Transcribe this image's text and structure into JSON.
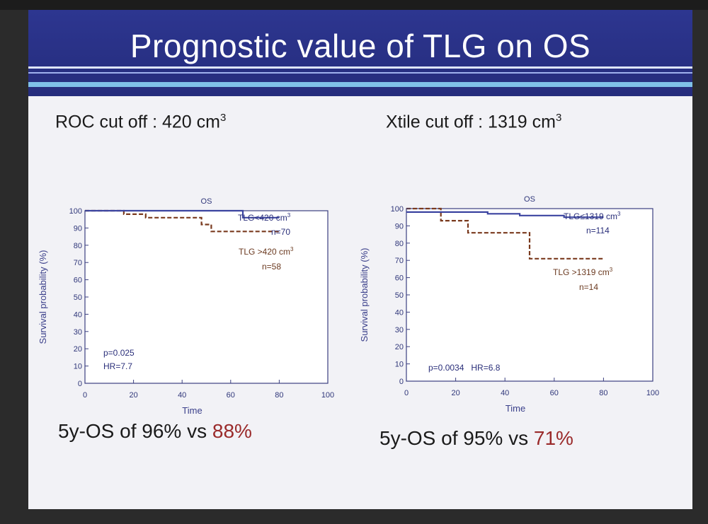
{
  "slide": {
    "title": "Prognostic value of TLG on OS",
    "colors": {
      "title_bg": "#2b3388",
      "accent_red": "#9a2a2a",
      "line_blue": "#3b44a0",
      "line_brown": "#7a3a1e"
    }
  },
  "panels": [
    {
      "cutoff_label": "ROC cut off : 420 cm",
      "cutoff_sup": "3",
      "summary_prefix": "5y-OS of 96%  vs ",
      "summary_highlight": "88%",
      "stats": {
        "p": "p=0.025",
        "hr": "HR=7.7"
      },
      "legend_high_name": "TLG<420 cm",
      "legend_high_sup": "3",
      "legend_high_n": "n=70",
      "legend_low_name": "TLG >420 cm",
      "legend_low_sup": "3",
      "legend_low_n": "n=58"
    },
    {
      "cutoff_label": "Xtile cut off : 1319 cm",
      "cutoff_sup": "3",
      "summary_prefix": "5y-OS of 95%  vs ",
      "summary_highlight": "71%",
      "stats": {
        "p": "p=0.0034",
        "hr": "HR=6.8"
      },
      "legend_high_name": "TLG≤1319 cm",
      "legend_high_sup": "3",
      "legend_high_n": "n=114",
      "legend_low_name": "TLG >1319 cm",
      "legend_low_sup": "3",
      "legend_low_n": "n=14"
    }
  ],
  "chart_data": [
    {
      "type": "line",
      "title": "OS",
      "xlabel": "Time",
      "ylabel": "Survival probability (%)",
      "xlim": [
        0,
        100
      ],
      "ylim": [
        0,
        100
      ],
      "xticks": [
        0,
        20,
        40,
        60,
        80,
        100
      ],
      "yticks": [
        0,
        10,
        20,
        30,
        40,
        50,
        60,
        70,
        80,
        90,
        100
      ],
      "series": [
        {
          "name": "TLG<420 cm3",
          "style": "solid",
          "color": "#3b44a0",
          "x": [
            0,
            65,
            65,
            80
          ],
          "y": [
            100,
            100,
            96,
            96
          ]
        },
        {
          "name": "TLG >420 cm3",
          "style": "dashed",
          "color": "#7a3a1e",
          "x": [
            0,
            16,
            16,
            25,
            25,
            48,
            48,
            52,
            52,
            80
          ],
          "y": [
            100,
            100,
            98,
            98,
            96,
            96,
            92,
            92,
            88,
            88
          ]
        }
      ]
    },
    {
      "type": "line",
      "title": "OS",
      "xlabel": "Time",
      "ylabel": "Survival probability (%)",
      "xlim": [
        0,
        100
      ],
      "ylim": [
        0,
        100
      ],
      "xticks": [
        0,
        20,
        40,
        60,
        80,
        100
      ],
      "yticks": [
        0,
        10,
        20,
        30,
        40,
        50,
        60,
        70,
        80,
        90,
        100
      ],
      "series": [
        {
          "name": "TLG≤1319 cm3",
          "style": "solid",
          "color": "#3b44a0",
          "x": [
            0,
            33,
            33,
            46,
            46,
            64,
            64,
            80
          ],
          "y": [
            98,
            98,
            97,
            97,
            96,
            96,
            95,
            95
          ]
        },
        {
          "name": "TLG >1319 cm3",
          "style": "dashed",
          "color": "#7a3a1e",
          "x": [
            0,
            14,
            14,
            25,
            25,
            50,
            50,
            80
          ],
          "y": [
            100,
            100,
            93,
            93,
            86,
            86,
            71,
            71
          ]
        }
      ]
    }
  ]
}
